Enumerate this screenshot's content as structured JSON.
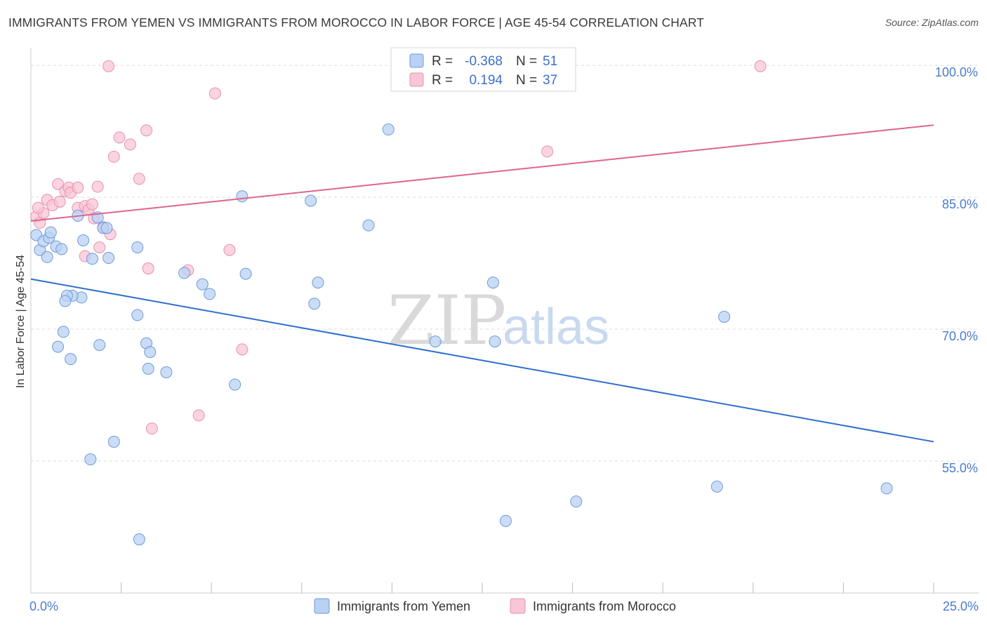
{
  "title": "IMMIGRANTS FROM YEMEN VS IMMIGRANTS FROM MOROCCO IN LABOR FORCE | AGE 45-54 CORRELATION CHART",
  "source": "Source: ZipAtlas.com",
  "watermark": {
    "zip": "ZIP",
    "atlas": "atlas"
  },
  "colors": {
    "yemen_fill": "#b9d1f3",
    "yemen_stroke": "#6f9ad8",
    "yemen_line": "#2e6fcf",
    "morocco_fill": "#f8c6d5",
    "morocco_stroke": "#e892ac",
    "morocco_line": "#e0648d",
    "grid": "#dcdcdc",
    "tick_label": "#4a7bd0"
  },
  "legend": {
    "yemen": {
      "r_label": "R =",
      "r_value": "-0.368",
      "n_label": "N =",
      "n_value": "51"
    },
    "morocco": {
      "r_label": "R =",
      "r_value": "0.194",
      "n_label": "N =",
      "n_value": "37"
    }
  },
  "chart_data": {
    "type": "scatter",
    "title": "IMMIGRANTS FROM YEMEN VS IMMIGRANTS FROM MOROCCO IN LABOR FORCE | AGE 45-54 CORRELATION CHART",
    "xlabel": "",
    "ylabel": "In Labor Force | Age 45-54",
    "xlim": [
      0,
      25
    ],
    "ylim": [
      40,
      102
    ],
    "x_tick_labels": {
      "left": "0.0%",
      "right": "25.0%"
    },
    "y_ticks": [
      {
        "value": 100,
        "label": "100.0%"
      },
      {
        "value": 85,
        "label": "85.0%"
      },
      {
        "value": 70,
        "label": "70.0%"
      },
      {
        "value": 55,
        "label": "55.0%"
      }
    ],
    "series": [
      {
        "name": "Immigrants from Yemen",
        "trend": {
          "x0": 0,
          "y0": 75.7,
          "x1": 25,
          "y1": 57.2
        },
        "points": [
          [
            0.15,
            80.7
          ],
          [
            0.25,
            79.0
          ],
          [
            0.35,
            80.0
          ],
          [
            0.45,
            78.2
          ],
          [
            0.5,
            80.4
          ],
          [
            0.55,
            81.0
          ],
          [
            0.7,
            79.4
          ],
          [
            0.85,
            79.1
          ],
          [
            1.3,
            82.9
          ],
          [
            1.45,
            80.1
          ],
          [
            1.4,
            73.6
          ],
          [
            1.15,
            73.8
          ],
          [
            1.0,
            73.8
          ],
          [
            0.95,
            73.2
          ],
          [
            1.7,
            78.0
          ],
          [
            1.85,
            82.7
          ],
          [
            2.0,
            81.5
          ],
          [
            2.1,
            81.5
          ],
          [
            2.15,
            78.1
          ],
          [
            2.95,
            79.3
          ],
          [
            2.95,
            71.6
          ],
          [
            0.9,
            69.7
          ],
          [
            0.75,
            68.0
          ],
          [
            1.1,
            66.6
          ],
          [
            1.9,
            68.2
          ],
          [
            3.2,
            68.4
          ],
          [
            3.3,
            67.4
          ],
          [
            3.25,
            65.5
          ],
          [
            3.75,
            65.1
          ],
          [
            5.65,
            63.7
          ],
          [
            2.3,
            57.2
          ],
          [
            1.65,
            55.2
          ],
          [
            3.0,
            46.1
          ],
          [
            5.85,
            85.1
          ],
          [
            5.95,
            76.3
          ],
          [
            4.25,
            76.4
          ],
          [
            4.75,
            75.1
          ],
          [
            4.95,
            74.0
          ],
          [
            7.75,
            84.6
          ],
          [
            7.95,
            75.3
          ],
          [
            7.85,
            72.9
          ],
          [
            9.35,
            81.8
          ],
          [
            9.9,
            92.7
          ],
          [
            11.2,
            68.6
          ],
          [
            12.8,
            75.3
          ],
          [
            12.85,
            68.6
          ],
          [
            13.15,
            48.2
          ],
          [
            15.1,
            50.4
          ],
          [
            19.2,
            71.4
          ],
          [
            19.0,
            52.1
          ],
          [
            23.7,
            51.9
          ]
        ]
      },
      {
        "name": "Immigrants from Morocco",
        "trend": {
          "x0": 0,
          "y0": 82.3,
          "x1": 25,
          "y1": 93.2
        },
        "points": [
          [
            0.15,
            82.8
          ],
          [
            0.25,
            82.1
          ],
          [
            0.35,
            83.2
          ],
          [
            0.45,
            84.7
          ],
          [
            0.6,
            84.1
          ],
          [
            0.75,
            86.5
          ],
          [
            0.95,
            85.7
          ],
          [
            1.05,
            86.1
          ],
          [
            1.1,
            85.5
          ],
          [
            1.3,
            83.8
          ],
          [
            1.3,
            86.1
          ],
          [
            1.5,
            84.0
          ],
          [
            1.6,
            83.6
          ],
          [
            1.7,
            84.2
          ],
          [
            1.75,
            82.6
          ],
          [
            1.85,
            86.2
          ],
          [
            1.5,
            78.3
          ],
          [
            1.9,
            79.3
          ],
          [
            2.0,
            81.6
          ],
          [
            2.2,
            80.8
          ],
          [
            2.3,
            89.6
          ],
          [
            2.45,
            91.8
          ],
          [
            2.75,
            91.0
          ],
          [
            3.0,
            87.1
          ],
          [
            3.2,
            92.6
          ],
          [
            2.15,
            99.9
          ],
          [
            5.1,
            96.8
          ],
          [
            3.25,
            76.9
          ],
          [
            4.35,
            76.7
          ],
          [
            5.5,
            79.0
          ],
          [
            5.85,
            67.7
          ],
          [
            4.65,
            60.2
          ],
          [
            3.35,
            58.7
          ],
          [
            14.3,
            90.2
          ],
          [
            20.2,
            99.9
          ],
          [
            0.2,
            83.8
          ],
          [
            0.8,
            84.5
          ]
        ]
      }
    ]
  },
  "bottom_legend": {
    "yemen_label": "Immigrants from Yemen",
    "morocco_label": "Immigrants from Morocco"
  }
}
